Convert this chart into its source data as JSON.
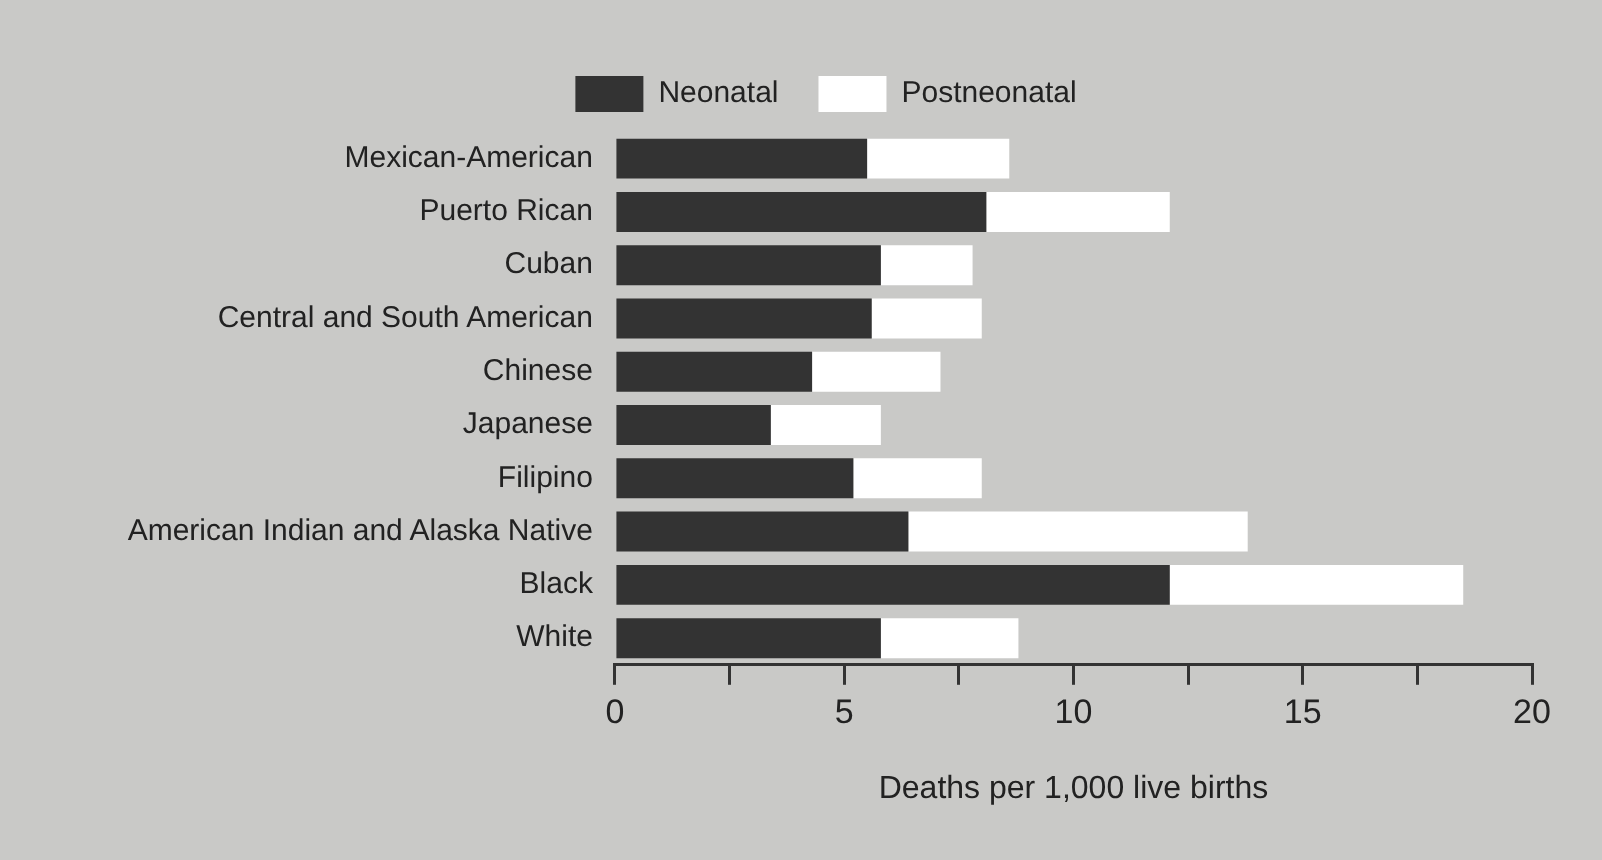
{
  "chart_data": {
    "type": "bar",
    "orientation": "horizontal",
    "stacked": true,
    "categories": [
      "Mexican-American",
      "Puerto Rican",
      "Cuban",
      "Central and South American",
      "Chinese",
      "Japanese",
      "Filipino",
      "American Indian and Alaska Native",
      "Black",
      "White"
    ],
    "series": [
      {
        "name": "Neonatal",
        "color": "#333333",
        "values": [
          5.5,
          8.1,
          5.8,
          5.6,
          4.3,
          3.4,
          5.2,
          6.4,
          12.1,
          5.8
        ]
      },
      {
        "name": "Postneonatal",
        "color": "#ffffff",
        "values": [
          3.1,
          4.0,
          2.0,
          2.4,
          2.8,
          2.4,
          2.8,
          7.4,
          6.4,
          3.0
        ]
      }
    ],
    "xlabel": "Deaths per 1,000 live births",
    "xlim": [
      0,
      20
    ],
    "xticks": [
      0,
      {
        "value": 2.5,
        "label": null
      },
      5,
      {
        "value": 7.5,
        "label": null
      },
      10,
      {
        "value": 12.5,
        "label": null
      },
      15,
      {
        "value": 17.5,
        "label": null
      },
      20
    ],
    "grid": false,
    "legend": "top"
  }
}
